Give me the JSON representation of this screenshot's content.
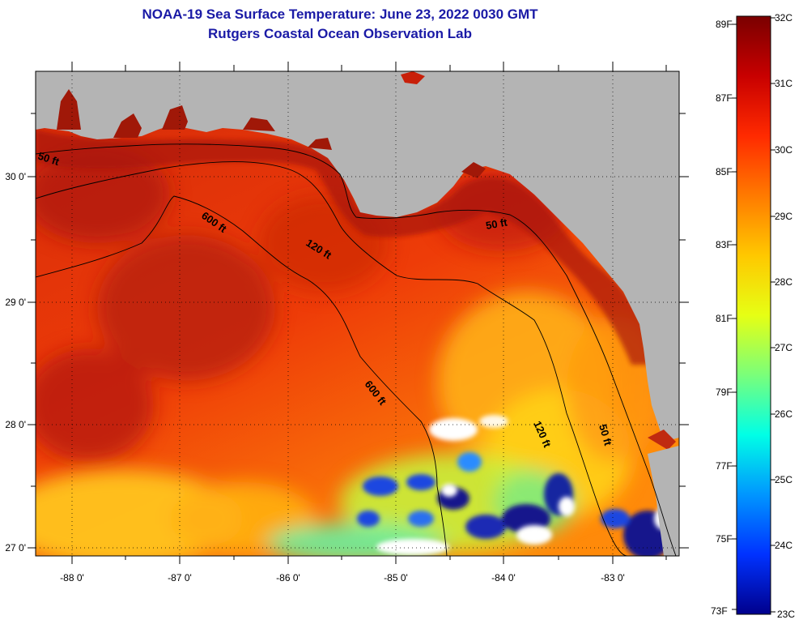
{
  "title": "NOAA-19 Sea Surface Temperature:  June 23, 2022 0030 GMT",
  "subtitle": "Rutgers Coastal Ocean Observation Lab",
  "map": {
    "longitude_labels": [
      "-88 0'",
      "-87 0'",
      "-86 0'",
      "-85 0'",
      "-84 0'",
      "-83 0'"
    ],
    "latitude_labels": [
      "30 0'",
      "29 0'",
      "28 0'",
      "27 0'"
    ],
    "contour_labels": [
      "50 ft",
      "600 ft",
      "120 ft",
      "50 ft",
      "600 ft",
      "120 ft",
      "50 ft"
    ]
  },
  "colorbar": {
    "fahrenheit_labels": [
      "89F",
      "87F",
      "85F",
      "83F",
      "81F",
      "79F",
      "77F",
      "75F",
      "73F"
    ],
    "celsius_labels": [
      "32C",
      "31C",
      "30C",
      "29C",
      "28C",
      "27C",
      "26C",
      "25C",
      "24C",
      "23C"
    ],
    "colors": [
      "#7a0000",
      "#c80000",
      "#ff2a00",
      "#ff7a00",
      "#ffc800",
      "#e6ff14",
      "#7aff7a",
      "#00ffe6",
      "#0096ff",
      "#0032ff",
      "#00008c"
    ]
  }
}
